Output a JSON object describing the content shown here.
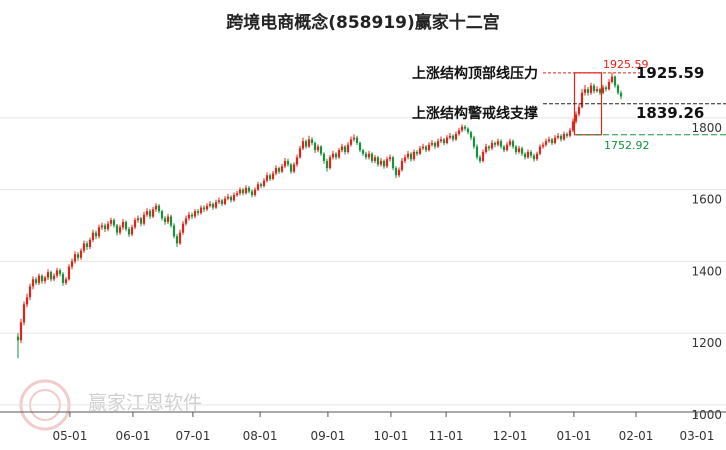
{
  "chart_data": {
    "type": "candlestick",
    "title": "跨境电商概念(858919)赢家十二宫",
    "watermark": "赢家江恩软件",
    "up_color": "#e2231a",
    "down_color": "#14923c",
    "xlim": [
      -6,
      236
    ],
    "xticks": [
      {
        "value": 17.3,
        "label": "05-01"
      },
      {
        "value": 38.3,
        "label": "06-01"
      },
      {
        "value": 58.3,
        "label": "07-01"
      },
      {
        "value": 80.7,
        "label": "08-01"
      },
      {
        "value": 103.3,
        "label": "09-01"
      },
      {
        "value": 124.3,
        "label": "10-01"
      },
      {
        "value": 142.7,
        "label": "11-01"
      },
      {
        "value": 164,
        "label": "12-01"
      },
      {
        "value": 185.3,
        "label": "01-01"
      },
      {
        "value": 206,
        "label": "02-01"
      },
      {
        "value": 226.3,
        "label": "03-01"
      }
    ],
    "ylim": [
      980,
      2045
    ],
    "yticks": [
      1000,
      1200,
      1400,
      1600,
      1800
    ],
    "grid": true,
    "levels": [
      {
        "name": "上涨结构顶部线压力",
        "value": 1925.59,
        "color": "#e2231a"
      },
      {
        "name": "上涨结构警戒线支撑",
        "value": 1839.26,
        "color": "#222222"
      },
      {
        "value": 1752.92,
        "color": "#14923c"
      }
    ],
    "ohlc": [
      [
        1190,
        1200,
        1130,
        1180
      ],
      [
        1180,
        1240,
        1172,
        1230
      ],
      [
        1230,
        1288,
        1222,
        1280
      ],
      [
        1280,
        1310,
        1272,
        1300
      ],
      [
        1300,
        1338,
        1292,
        1330
      ],
      [
        1330,
        1358,
        1322,
        1350
      ],
      [
        1350,
        1356,
        1334,
        1340
      ],
      [
        1340,
        1366,
        1334,
        1360
      ],
      [
        1360,
        1364,
        1338,
        1345
      ],
      [
        1345,
        1360,
        1338,
        1355
      ],
      [
        1355,
        1378,
        1348,
        1370
      ],
      [
        1370,
        1374,
        1344,
        1350
      ],
      [
        1350,
        1366,
        1345,
        1360
      ],
      [
        1360,
        1382,
        1354,
        1375
      ],
      [
        1375,
        1380,
        1358,
        1365
      ],
      [
        1365,
        1370,
        1332,
        1340
      ],
      [
        1340,
        1356,
        1334,
        1350
      ],
      [
        1350,
        1392,
        1346,
        1385
      ],
      [
        1385,
        1408,
        1378,
        1400
      ],
      [
        1400,
        1428,
        1394,
        1420
      ],
      [
        1420,
        1426,
        1402,
        1410
      ],
      [
        1410,
        1436,
        1404,
        1430
      ],
      [
        1430,
        1458,
        1424,
        1450
      ],
      [
        1450,
        1456,
        1432,
        1440
      ],
      [
        1440,
        1466,
        1434,
        1460
      ],
      [
        1460,
        1488,
        1454,
        1480
      ],
      [
        1480,
        1486,
        1462,
        1470
      ],
      [
        1470,
        1502,
        1464,
        1495
      ],
      [
        1495,
        1508,
        1488,
        1500
      ],
      [
        1500,
        1506,
        1482,
        1490
      ],
      [
        1490,
        1512,
        1484,
        1505
      ],
      [
        1505,
        1522,
        1498,
        1515
      ],
      [
        1515,
        1520,
        1494,
        1500
      ],
      [
        1500,
        1504,
        1472,
        1480
      ],
      [
        1480,
        1502,
        1474,
        1495
      ],
      [
        1495,
        1518,
        1488,
        1510
      ],
      [
        1510,
        1514,
        1484,
        1490
      ],
      [
        1490,
        1496,
        1468,
        1475
      ],
      [
        1475,
        1502,
        1470,
        1495
      ],
      [
        1495,
        1522,
        1490,
        1515
      ],
      [
        1515,
        1528,
        1508,
        1520
      ],
      [
        1520,
        1524,
        1498,
        1505
      ],
      [
        1505,
        1538,
        1500,
        1530
      ],
      [
        1530,
        1548,
        1524,
        1540
      ],
      [
        1540,
        1546,
        1518,
        1525
      ],
      [
        1525,
        1552,
        1520,
        1545
      ],
      [
        1545,
        1562,
        1538,
        1555
      ],
      [
        1555,
        1560,
        1534,
        1540
      ],
      [
        1540,
        1544,
        1514,
        1520
      ],
      [
        1520,
        1526,
        1502,
        1510
      ],
      [
        1510,
        1532,
        1504,
        1525
      ],
      [
        1525,
        1530,
        1494,
        1500
      ],
      [
        1500,
        1506,
        1464,
        1470
      ],
      [
        1470,
        1476,
        1440,
        1450
      ],
      [
        1450,
        1488,
        1446,
        1480
      ],
      [
        1480,
        1512,
        1474,
        1505
      ],
      [
        1505,
        1528,
        1500,
        1520
      ],
      [
        1520,
        1538,
        1514,
        1530
      ],
      [
        1530,
        1536,
        1518,
        1525
      ],
      [
        1525,
        1546,
        1520,
        1540
      ],
      [
        1540,
        1546,
        1528,
        1535
      ],
      [
        1535,
        1556,
        1530,
        1550
      ],
      [
        1550,
        1556,
        1538,
        1545
      ],
      [
        1545,
        1562,
        1540,
        1555
      ],
      [
        1555,
        1568,
        1550,
        1560
      ],
      [
        1560,
        1564,
        1544,
        1550
      ],
      [
        1550,
        1572,
        1546,
        1565
      ],
      [
        1565,
        1578,
        1560,
        1570
      ],
      [
        1570,
        1574,
        1554,
        1560
      ],
      [
        1560,
        1582,
        1556,
        1575
      ],
      [
        1575,
        1588,
        1570,
        1580
      ],
      [
        1580,
        1584,
        1564,
        1570
      ],
      [
        1570,
        1592,
        1566,
        1585
      ],
      [
        1585,
        1596,
        1580,
        1590
      ],
      [
        1590,
        1606,
        1584,
        1600
      ],
      [
        1600,
        1604,
        1584,
        1590
      ],
      [
        1590,
        1612,
        1586,
        1605
      ],
      [
        1605,
        1610,
        1590,
        1595
      ],
      [
        1595,
        1600,
        1578,
        1585
      ],
      [
        1585,
        1606,
        1580,
        1600
      ],
      [
        1600,
        1622,
        1596,
        1615
      ],
      [
        1615,
        1620,
        1604,
        1610
      ],
      [
        1610,
        1632,
        1606,
        1625
      ],
      [
        1625,
        1648,
        1620,
        1640
      ],
      [
        1640,
        1645,
        1624,
        1630
      ],
      [
        1630,
        1652,
        1626,
        1645
      ],
      [
        1645,
        1668,
        1640,
        1660
      ],
      [
        1660,
        1664,
        1644,
        1650
      ],
      [
        1650,
        1672,
        1646,
        1665
      ],
      [
        1665,
        1688,
        1660,
        1680
      ],
      [
        1680,
        1686,
        1664,
        1670
      ],
      [
        1670,
        1674,
        1644,
        1650
      ],
      [
        1650,
        1676,
        1646,
        1670
      ],
      [
        1670,
        1698,
        1664,
        1690
      ],
      [
        1690,
        1722,
        1686,
        1715
      ],
      [
        1715,
        1745,
        1710,
        1735
      ],
      [
        1735,
        1740,
        1714,
        1720
      ],
      [
        1720,
        1750,
        1716,
        1740
      ],
      [
        1740,
        1746,
        1724,
        1730
      ],
      [
        1730,
        1734,
        1702,
        1710
      ],
      [
        1710,
        1726,
        1704,
        1720
      ],
      [
        1720,
        1724,
        1694,
        1700
      ],
      [
        1700,
        1704,
        1672,
        1680
      ],
      [
        1680,
        1686,
        1650,
        1660
      ],
      [
        1660,
        1696,
        1656,
        1690
      ],
      [
        1690,
        1708,
        1684,
        1700
      ],
      [
        1700,
        1704,
        1684,
        1690
      ],
      [
        1690,
        1716,
        1686,
        1710
      ],
      [
        1710,
        1728,
        1704,
        1720
      ],
      [
        1720,
        1724,
        1698,
        1705
      ],
      [
        1705,
        1732,
        1700,
        1725
      ],
      [
        1725,
        1748,
        1720,
        1740
      ],
      [
        1740,
        1754,
        1734,
        1745
      ],
      [
        1745,
        1750,
        1724,
        1730
      ],
      [
        1730,
        1734,
        1704,
        1710
      ],
      [
        1710,
        1714,
        1694,
        1700
      ],
      [
        1700,
        1706,
        1684,
        1690
      ],
      [
        1690,
        1708,
        1684,
        1700
      ],
      [
        1700,
        1704,
        1674,
        1680
      ],
      [
        1680,
        1696,
        1674,
        1690
      ],
      [
        1690,
        1694,
        1664,
        1670
      ],
      [
        1670,
        1688,
        1664,
        1680
      ],
      [
        1680,
        1684,
        1658,
        1665
      ],
      [
        1665,
        1692,
        1660,
        1685
      ],
      [
        1685,
        1698,
        1678,
        1690
      ],
      [
        1690,
        1694,
        1654,
        1660
      ],
      [
        1660,
        1666,
        1632,
        1640
      ],
      [
        1640,
        1662,
        1634,
        1655
      ],
      [
        1655,
        1688,
        1650,
        1680
      ],
      [
        1680,
        1698,
        1674,
        1690
      ],
      [
        1690,
        1708,
        1684,
        1700
      ],
      [
        1700,
        1704,
        1678,
        1685
      ],
      [
        1685,
        1712,
        1680,
        1705
      ],
      [
        1705,
        1710,
        1694,
        1700
      ],
      [
        1700,
        1722,
        1696,
        1715
      ],
      [
        1715,
        1728,
        1710,
        1720
      ],
      [
        1720,
        1724,
        1704,
        1710
      ],
      [
        1710,
        1732,
        1706,
        1725
      ],
      [
        1725,
        1738,
        1720,
        1730
      ],
      [
        1730,
        1734,
        1714,
        1720
      ],
      [
        1720,
        1742,
        1716,
        1735
      ],
      [
        1735,
        1748,
        1730,
        1740
      ],
      [
        1740,
        1744,
        1724,
        1730
      ],
      [
        1730,
        1752,
        1726,
        1745
      ],
      [
        1745,
        1758,
        1740,
        1750
      ],
      [
        1750,
        1754,
        1734,
        1740
      ],
      [
        1740,
        1762,
        1736,
        1755
      ],
      [
        1755,
        1772,
        1750,
        1765
      ],
      [
        1765,
        1782,
        1760,
        1775
      ],
      [
        1775,
        1780,
        1764,
        1770
      ],
      [
        1770,
        1774,
        1754,
        1760
      ],
      [
        1760,
        1764,
        1738,
        1745
      ],
      [
        1745,
        1750,
        1714,
        1720
      ],
      [
        1720,
        1726,
        1684,
        1690
      ],
      [
        1690,
        1696,
        1674,
        1680
      ],
      [
        1680,
        1712,
        1676,
        1705
      ],
      [
        1705,
        1728,
        1700,
        1720
      ],
      [
        1720,
        1724,
        1708,
        1715
      ],
      [
        1715,
        1738,
        1710,
        1730
      ],
      [
        1730,
        1734,
        1718,
        1725
      ],
      [
        1725,
        1742,
        1720,
        1735
      ],
      [
        1735,
        1740,
        1714,
        1720
      ],
      [
        1720,
        1724,
        1704,
        1710
      ],
      [
        1710,
        1732,
        1706,
        1725
      ],
      [
        1725,
        1742,
        1720,
        1735
      ],
      [
        1735,
        1740,
        1714,
        1720
      ],
      [
        1720,
        1724,
        1698,
        1705
      ],
      [
        1705,
        1722,
        1700,
        1715
      ],
      [
        1715,
        1720,
        1694,
        1700
      ],
      [
        1700,
        1704,
        1684,
        1690
      ],
      [
        1690,
        1712,
        1686,
        1705
      ],
      [
        1705,
        1710,
        1688,
        1695
      ],
      [
        1695,
        1700,
        1678,
        1685
      ],
      [
        1685,
        1706,
        1680,
        1700
      ],
      [
        1700,
        1726,
        1696,
        1720
      ],
      [
        1720,
        1732,
        1714,
        1725
      ],
      [
        1725,
        1742,
        1720,
        1735
      ],
      [
        1735,
        1748,
        1730,
        1740
      ],
      [
        1740,
        1744,
        1724,
        1730
      ],
      [
        1730,
        1752,
        1726,
        1745
      ],
      [
        1745,
        1758,
        1740,
        1750
      ],
      [
        1750,
        1754,
        1734,
        1740
      ],
      [
        1740,
        1762,
        1736,
        1755
      ],
      [
        1755,
        1760,
        1744,
        1750
      ],
      [
        1750,
        1772,
        1746,
        1765
      ],
      [
        1765,
        1798,
        1760,
        1790
      ],
      [
        1790,
        1818,
        1784,
        1810
      ],
      [
        1810,
        1840,
        1804,
        1830
      ],
      [
        1830,
        1880,
        1826,
        1870
      ],
      [
        1870,
        1892,
        1862,
        1880
      ],
      [
        1880,
        1886,
        1862,
        1870
      ],
      [
        1870,
        1898,
        1864,
        1890
      ],
      [
        1890,
        1895,
        1868,
        1875
      ],
      [
        1875,
        1888,
        1870,
        1880
      ],
      [
        1880,
        1884,
        1864,
        1870
      ],
      [
        1870,
        1892,
        1866,
        1885
      ],
      [
        1885,
        1890,
        1874,
        1880
      ],
      [
        1880,
        1908,
        1876,
        1900
      ],
      [
        1900,
        1926,
        1896,
        1915
      ],
      [
        1915,
        1918,
        1884,
        1890
      ],
      [
        1890,
        1894,
        1864,
        1870
      ],
      [
        1870,
        1876,
        1852,
        1860
      ]
    ]
  }
}
